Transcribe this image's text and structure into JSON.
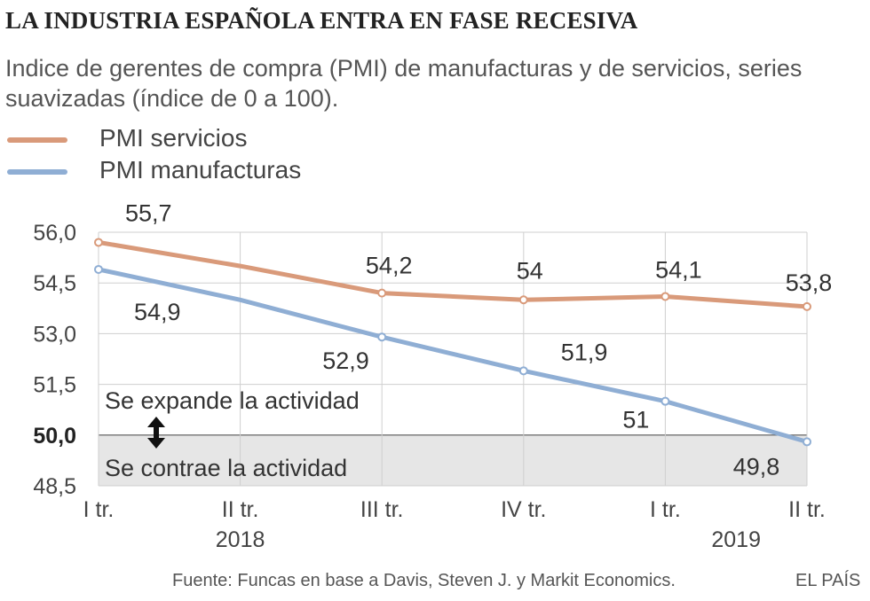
{
  "header": {
    "title": "LA INDUSTRIA ESPAÑOLA ENTRA EN FASE RECESIVA",
    "subtitle": "Indice de gerentes de compra (PMI) de manufacturas y de servicios, series suavizadas (índice de 0 a 100)."
  },
  "legend": {
    "items": [
      {
        "label": "PMI servicios",
        "color": "#d99a7a"
      },
      {
        "label": "PMI manufacturas",
        "color": "#8faed4"
      }
    ]
  },
  "chart_data": {
    "type": "line",
    "title": "LA INDUSTRIA ESPAÑOLA ENTRA EN FASE RECESIVA",
    "subtitle": "Indice de gerentes de compra (PMI) de manufacturas y de servicios, series suavizadas (índice de 0 a 100).",
    "categories": [
      "I tr.",
      "II tr.",
      "III tr.",
      "IV tr.",
      "I tr.",
      "II tr."
    ],
    "year_labels": [
      {
        "label": "2018",
        "index": 1
      },
      {
        "label": "2019",
        "index": 4.5
      }
    ],
    "series": [
      {
        "name": "PMI servicios",
        "color": "#d99a7a",
        "values": [
          55.7,
          55.0,
          54.2,
          54.0,
          54.1,
          53.8
        ],
        "marker_indices": [
          0,
          2,
          3,
          4,
          5
        ],
        "labels": [
          "55,7",
          null,
          "54,2",
          "54",
          "54,1",
          "53,8"
        ]
      },
      {
        "name": "PMI manufacturas",
        "color": "#8faed4",
        "values": [
          54.9,
          54.0,
          52.9,
          51.9,
          51.0,
          49.8
        ],
        "marker_indices": [
          0,
          2,
          3,
          4,
          5
        ],
        "labels": [
          "54,9",
          null,
          "52,9",
          "51,9",
          "51",
          "49,8"
        ]
      }
    ],
    "ylim": [
      48.5,
      56.0
    ],
    "yticks": [
      "56,0",
      "54,5",
      "53,0",
      "51,5",
      "50,0",
      "48,5"
    ],
    "ytick_values": [
      56.0,
      54.5,
      53.0,
      51.5,
      50.0,
      48.5
    ],
    "threshold": 50.0,
    "annotations": {
      "above": "Se expande la actividad",
      "below": "Se contrae la actividad"
    },
    "grid": true
  },
  "footer": {
    "source": "Fuente: Funcas en base a Davis, Steven J. y Markit Economics.",
    "brand": "EL PAÍS"
  }
}
